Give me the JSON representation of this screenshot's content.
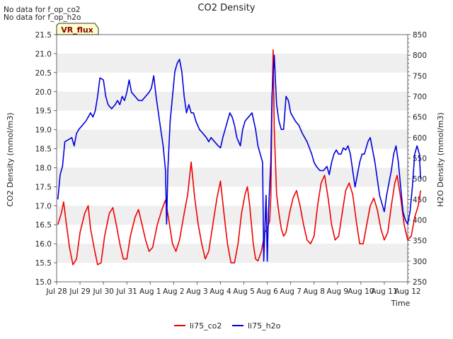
{
  "notices": [
    "No data for f_op_co2",
    "No data for f_op_h2o"
  ],
  "badge": "VR_flux",
  "chart_data": {
    "type": "line",
    "title": "CO2 Density",
    "xlabel": "Time",
    "ylabel_left": "CO2 Density (mmol/m3)",
    "ylabel_right": "H2O Density (mmol/m3)",
    "x_ticks": [
      "Jul 28",
      "Jul 29",
      "Jul 30",
      "Jul 31",
      "Aug 1",
      "Aug 2",
      "Aug 3",
      "Aug 4",
      "Aug 5",
      "Aug 6",
      "Aug 7",
      "Aug 8",
      "Aug 9",
      "Aug 10",
      "Aug 11",
      "Aug 12"
    ],
    "x_range_days": [
      0,
      15
    ],
    "y_left_range": [
      15.0,
      21.5
    ],
    "y_left_ticks": [
      15.0,
      15.5,
      16.0,
      16.5,
      17.0,
      17.5,
      18.0,
      18.5,
      19.0,
      19.5,
      20.0,
      20.5,
      21.0,
      21.5
    ],
    "y_right_range": [
      250,
      850
    ],
    "y_right_ticks": [
      250,
      300,
      350,
      400,
      450,
      500,
      550,
      600,
      650,
      700,
      750,
      800,
      850
    ],
    "grid_bands": true,
    "legend_position": "bottom-center",
    "series": [
      {
        "name": "li75_co2",
        "axis": "left",
        "color": "#ee0000",
        "points": [
          [
            0.05,
            16.5
          ],
          [
            0.2,
            16.8
          ],
          [
            0.3,
            17.1
          ],
          [
            0.4,
            16.6
          ],
          [
            0.55,
            15.9
          ],
          [
            0.7,
            15.45
          ],
          [
            0.85,
            15.6
          ],
          [
            1.0,
            16.3
          ],
          [
            1.2,
            16.8
          ],
          [
            1.35,
            17.0
          ],
          [
            1.45,
            16.4
          ],
          [
            1.6,
            15.9
          ],
          [
            1.75,
            15.45
          ],
          [
            1.9,
            15.5
          ],
          [
            2.05,
            16.2
          ],
          [
            2.25,
            16.8
          ],
          [
            2.4,
            16.95
          ],
          [
            2.55,
            16.5
          ],
          [
            2.7,
            16.0
          ],
          [
            2.85,
            15.6
          ],
          [
            3.0,
            15.6
          ],
          [
            3.15,
            16.2
          ],
          [
            3.35,
            16.7
          ],
          [
            3.5,
            16.9
          ],
          [
            3.65,
            16.5
          ],
          [
            3.8,
            16.1
          ],
          [
            3.95,
            15.8
          ],
          [
            4.1,
            15.9
          ],
          [
            4.3,
            16.5
          ],
          [
            4.5,
            16.9
          ],
          [
            4.65,
            17.15
          ],
          [
            4.8,
            16.6
          ],
          [
            4.95,
            16.0
          ],
          [
            5.1,
            15.8
          ],
          [
            5.25,
            16.1
          ],
          [
            5.45,
            16.8
          ],
          [
            5.6,
            17.3
          ],
          [
            5.75,
            18.15
          ],
          [
            5.9,
            17.2
          ],
          [
            6.05,
            16.5
          ],
          [
            6.2,
            16.0
          ],
          [
            6.35,
            15.6
          ],
          [
            6.5,
            15.8
          ],
          [
            6.7,
            16.6
          ],
          [
            6.85,
            17.2
          ],
          [
            7.0,
            17.65
          ],
          [
            7.15,
            16.8
          ],
          [
            7.3,
            16.0
          ],
          [
            7.45,
            15.5
          ],
          [
            7.6,
            15.5
          ],
          [
            7.75,
            16.0
          ],
          [
            7.9,
            16.8
          ],
          [
            8.05,
            17.3
          ],
          [
            8.15,
            17.5
          ],
          [
            8.25,
            17.0
          ],
          [
            8.4,
            16.0
          ],
          [
            8.5,
            15.6
          ],
          [
            8.6,
            15.55
          ],
          [
            8.75,
            15.8
          ],
          [
            8.9,
            16.3
          ],
          [
            9.0,
            16.4
          ],
          [
            9.1,
            16.6
          ],
          [
            9.15,
            17.2
          ],
          [
            9.2,
            19.5
          ],
          [
            9.25,
            21.1
          ],
          [
            9.3,
            19.0
          ],
          [
            9.4,
            17.3
          ],
          [
            9.5,
            16.8
          ],
          [
            9.6,
            16.4
          ],
          [
            9.7,
            16.2
          ],
          [
            9.8,
            16.3
          ],
          [
            9.95,
            16.8
          ],
          [
            10.1,
            17.2
          ],
          [
            10.25,
            17.4
          ],
          [
            10.4,
            17.0
          ],
          [
            10.55,
            16.5
          ],
          [
            10.7,
            16.1
          ],
          [
            10.85,
            16.0
          ],
          [
            11.0,
            16.2
          ],
          [
            11.15,
            17.0
          ],
          [
            11.3,
            17.6
          ],
          [
            11.45,
            17.8
          ],
          [
            11.6,
            17.2
          ],
          [
            11.75,
            16.5
          ],
          [
            11.9,
            16.1
          ],
          [
            12.05,
            16.2
          ],
          [
            12.2,
            16.8
          ],
          [
            12.35,
            17.4
          ],
          [
            12.5,
            17.6
          ],
          [
            12.65,
            17.3
          ],
          [
            12.8,
            16.6
          ],
          [
            12.95,
            16.0
          ],
          [
            13.1,
            16.0
          ],
          [
            13.25,
            16.5
          ],
          [
            13.4,
            17.0
          ],
          [
            13.55,
            17.2
          ],
          [
            13.7,
            16.9
          ],
          [
            13.85,
            16.4
          ],
          [
            14.0,
            16.1
          ],
          [
            14.15,
            16.3
          ],
          [
            14.3,
            17.0
          ],
          [
            14.45,
            17.6
          ],
          [
            14.55,
            17.8
          ],
          [
            14.7,
            17.2
          ],
          [
            14.85,
            16.5
          ],
          [
            15.0,
            16.1
          ],
          [
            15.15,
            16.2
          ],
          [
            15.3,
            16.7
          ],
          [
            15.45,
            17.0
          ],
          [
            15.55,
            17.4
          ]
        ]
      },
      {
        "name": "li75_h2o",
        "axis": "right",
        "color": "#0000dd",
        "points": [
          [
            0.05,
            450
          ],
          [
            0.15,
            510
          ],
          [
            0.25,
            530
          ],
          [
            0.35,
            590
          ],
          [
            0.5,
            595
          ],
          [
            0.65,
            600
          ],
          [
            0.75,
            580
          ],
          [
            0.85,
            610
          ],
          [
            0.95,
            620
          ],
          [
            1.1,
            630
          ],
          [
            1.25,
            640
          ],
          [
            1.35,
            650
          ],
          [
            1.45,
            660
          ],
          [
            1.55,
            650
          ],
          [
            1.65,
            665
          ],
          [
            1.75,
            700
          ],
          [
            1.85,
            745
          ],
          [
            2.0,
            740
          ],
          [
            2.1,
            700
          ],
          [
            2.2,
            680
          ],
          [
            2.35,
            670
          ],
          [
            2.5,
            680
          ],
          [
            2.6,
            690
          ],
          [
            2.7,
            680
          ],
          [
            2.8,
            700
          ],
          [
            2.9,
            690
          ],
          [
            3.0,
            710
          ],
          [
            3.1,
            740
          ],
          [
            3.2,
            710
          ],
          [
            3.35,
            700
          ],
          [
            3.5,
            690
          ],
          [
            3.65,
            690
          ],
          [
            3.8,
            700
          ],
          [
            3.95,
            710
          ],
          [
            4.05,
            720
          ],
          [
            4.15,
            750
          ],
          [
            4.25,
            700
          ],
          [
            4.35,
            660
          ],
          [
            4.45,
            620
          ],
          [
            4.55,
            580
          ],
          [
            4.65,
            520
          ],
          [
            4.7,
            390
          ],
          [
            4.75,
            520
          ],
          [
            4.85,
            640
          ],
          [
            4.95,
            700
          ],
          [
            5.05,
            760
          ],
          [
            5.15,
            780
          ],
          [
            5.25,
            790
          ],
          [
            5.35,
            760
          ],
          [
            5.45,
            700
          ],
          [
            5.55,
            660
          ],
          [
            5.65,
            680
          ],
          [
            5.75,
            660
          ],
          [
            5.85,
            660
          ],
          [
            5.95,
            640
          ],
          [
            6.1,
            620
          ],
          [
            6.25,
            610
          ],
          [
            6.4,
            600
          ],
          [
            6.5,
            590
          ],
          [
            6.6,
            600
          ],
          [
            6.75,
            590
          ],
          [
            6.9,
            580
          ],
          [
            7.0,
            575
          ],
          [
            7.1,
            600
          ],
          [
            7.2,
            620
          ],
          [
            7.3,
            640
          ],
          [
            7.4,
            660
          ],
          [
            7.5,
            650
          ],
          [
            7.6,
            630
          ],
          [
            7.7,
            600
          ],
          [
            7.85,
            580
          ],
          [
            7.95,
            620
          ],
          [
            8.05,
            640
          ],
          [
            8.2,
            650
          ],
          [
            8.35,
            660
          ],
          [
            8.5,
            620
          ],
          [
            8.6,
            580
          ],
          [
            8.7,
            560
          ],
          [
            8.8,
            540
          ],
          [
            8.85,
            300
          ],
          [
            8.95,
            460
          ],
          [
            9.0,
            300
          ],
          [
            9.05,
            420
          ],
          [
            9.15,
            540
          ],
          [
            9.2,
            700
          ],
          [
            9.3,
            800
          ],
          [
            9.4,
            680
          ],
          [
            9.5,
            640
          ],
          [
            9.6,
            620
          ],
          [
            9.7,
            620
          ],
          [
            9.8,
            700
          ],
          [
            9.9,
            690
          ],
          [
            10.0,
            660
          ],
          [
            10.1,
            650
          ],
          [
            10.2,
            640
          ],
          [
            10.35,
            630
          ],
          [
            10.5,
            610
          ],
          [
            10.6,
            600
          ],
          [
            10.7,
            590
          ],
          [
            10.8,
            575
          ],
          [
            10.9,
            560
          ],
          [
            11.0,
            540
          ],
          [
            11.1,
            530
          ],
          [
            11.25,
            520
          ],
          [
            11.4,
            520
          ],
          [
            11.55,
            530
          ],
          [
            11.65,
            510
          ],
          [
            11.75,
            540
          ],
          [
            11.85,
            560
          ],
          [
            11.95,
            570
          ],
          [
            12.05,
            560
          ],
          [
            12.15,
            560
          ],
          [
            12.25,
            575
          ],
          [
            12.35,
            570
          ],
          [
            12.45,
            580
          ],
          [
            12.55,
            560
          ],
          [
            12.65,
            520
          ],
          [
            12.75,
            480
          ],
          [
            12.85,
            510
          ],
          [
            12.95,
            540
          ],
          [
            13.05,
            560
          ],
          [
            13.15,
            560
          ],
          [
            13.3,
            590
          ],
          [
            13.4,
            600
          ],
          [
            13.5,
            570
          ],
          [
            13.6,
            540
          ],
          [
            13.7,
            500
          ],
          [
            13.8,
            460
          ],
          [
            13.9,
            440
          ],
          [
            14.0,
            420
          ],
          [
            14.1,
            460
          ],
          [
            14.2,
            490
          ],
          [
            14.3,
            520
          ],
          [
            14.4,
            560
          ],
          [
            14.5,
            580
          ],
          [
            14.6,
            540
          ],
          [
            14.7,
            480
          ],
          [
            14.8,
            420
          ],
          [
            14.9,
            400
          ],
          [
            15.0,
            390
          ],
          [
            15.1,
            420
          ],
          [
            15.2,
            480
          ],
          [
            15.3,
            560
          ],
          [
            15.4,
            580
          ],
          [
            15.5,
            560
          ],
          [
            15.55,
            500
          ]
        ]
      }
    ]
  }
}
